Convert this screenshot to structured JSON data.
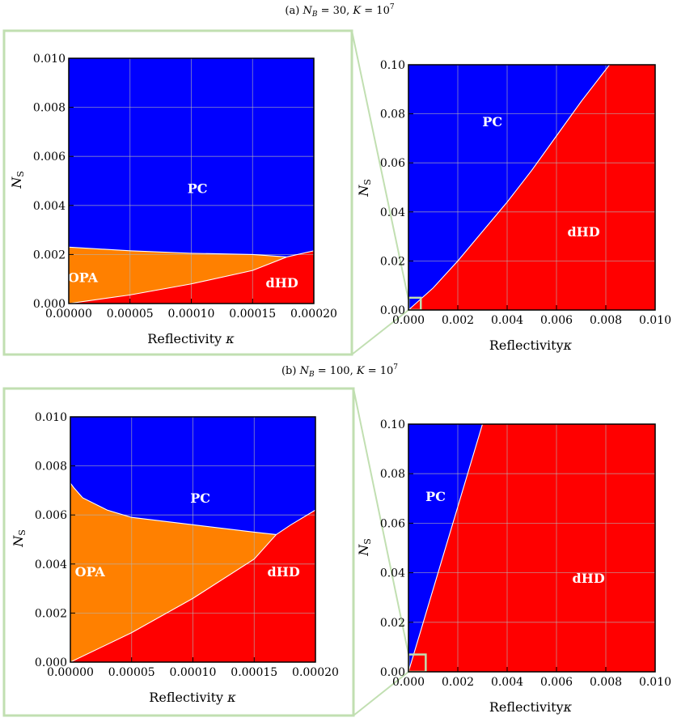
{
  "captions": {
    "a": {
      "prefix": "(a) ",
      "nb": "N",
      "nb_sub": "B",
      "nb_val": " = 30, ",
      "k": "K",
      "k_val": " = 10",
      "k_exp": "7"
    },
    "b": {
      "prefix": "(b) ",
      "nb": "N",
      "nb_sub": "B",
      "nb_val": " = 100, ",
      "k": "K",
      "k_val": " = 10",
      "k_exp": "7"
    }
  },
  "axes": {
    "xlabel": "Reflectivity",
    "xsym": "κ",
    "ylabel": "N",
    "ysub": "S"
  },
  "colors": {
    "PC": "#0000ff",
    "OPA": "#ff8000",
    "dHD": "#ff0000",
    "grid": "#b4b4b4",
    "zoom": "#c1dfb1"
  },
  "chart_data": [
    {
      "id": "a-zoom",
      "type": "area",
      "panel": "a",
      "xlim": [
        0,
        0.0002
      ],
      "ylim": [
        0,
        0.01
      ],
      "xticks": [
        "0.00000",
        "0.00005",
        "0.00010",
        "0.00015",
        "0.00020"
      ],
      "yticks": [
        "0.000",
        "0.002",
        "0.004",
        "0.006",
        "0.008",
        "0.010"
      ],
      "boundaries": {
        "opa_pc": [
          [
            0,
            0.0023
          ],
          [
            5e-05,
            0.00215
          ],
          [
            0.0001,
            0.00205
          ],
          [
            0.00015,
            0.002
          ],
          [
            0.000178,
            0.0019
          ]
        ],
        "dhd_pc": [
          [
            0.000178,
            0.0019
          ],
          [
            0.0002,
            0.00215
          ]
        ],
        "opa_dhd": [
          [
            0,
            0.0
          ],
          [
            5e-05,
            0.00035
          ],
          [
            0.0001,
            0.0008
          ],
          [
            0.00015,
            0.00135
          ],
          [
            0.000178,
            0.0019
          ]
        ]
      },
      "labels": [
        {
          "text": "PC",
          "x": 0.000105,
          "y": 0.0045
        },
        {
          "text": "OPA",
          "x": 1.15e-05,
          "y": 0.00088
        },
        {
          "text": "dHD",
          "x": 0.000174,
          "y": 0.00066
        }
      ]
    },
    {
      "id": "a-full",
      "type": "area",
      "panel": "a",
      "xlim": [
        0,
        0.01
      ],
      "ylim": [
        0,
        0.1
      ],
      "xticks": [
        "0.000",
        "0.002",
        "0.004",
        "0.006",
        "0.008",
        "0.010"
      ],
      "yticks": [
        "0.00",
        "0.02",
        "0.04",
        "0.06",
        "0.08",
        "0.10"
      ],
      "boundaries": {
        "dhd_pc": [
          [
            0,
            0.0
          ],
          [
            0.001,
            0.009
          ],
          [
            0.002,
            0.02
          ],
          [
            0.003,
            0.032
          ],
          [
            0.004,
            0.044
          ],
          [
            0.005,
            0.057
          ],
          [
            0.006,
            0.071
          ],
          [
            0.007,
            0.085
          ],
          [
            0.00815,
            0.1
          ]
        ]
      },
      "zoom_box": {
        "x": [
          0,
          0.0005
        ],
        "y": [
          0,
          0.005
        ]
      },
      "labels": [
        {
          "text": "PC",
          "x": 0.0034,
          "y": 0.075
        },
        {
          "text": "dHD",
          "x": 0.0071,
          "y": 0.03
        }
      ]
    },
    {
      "id": "b-zoom",
      "type": "area",
      "panel": "b",
      "xlim": [
        0,
        0.0002
      ],
      "ylim": [
        0,
        0.01
      ],
      "xticks": [
        "0.00000",
        "0.00005",
        "0.00010",
        "0.00015",
        "0.00020"
      ],
      "yticks": [
        "0.000",
        "0.002",
        "0.004",
        "0.006",
        "0.008",
        "0.010"
      ],
      "boundaries": {
        "opa_pc": [
          [
            0,
            0.0073
          ],
          [
            3e-06,
            0.0071
          ],
          [
            1e-05,
            0.0067
          ],
          [
            3e-05,
            0.0062
          ],
          [
            5e-05,
            0.0059
          ],
          [
            0.0001,
            0.0056
          ],
          [
            0.00015,
            0.0053
          ],
          [
            0.000168,
            0.0052
          ]
        ],
        "dhd_pc": [
          [
            0.000168,
            0.0052
          ],
          [
            0.00018,
            0.0056
          ],
          [
            0.0002,
            0.0062
          ]
        ],
        "opa_dhd": [
          [
            0,
            0.0
          ],
          [
            5e-05,
            0.0012
          ],
          [
            0.0001,
            0.0026
          ],
          [
            0.00015,
            0.0042
          ],
          [
            0.000168,
            0.0052
          ]
        ]
      },
      "labels": [
        {
          "text": "PC",
          "x": 0.000106,
          "y": 0.0065
        },
        {
          "text": "OPA",
          "x": 1.6e-05,
          "y": 0.0035
        },
        {
          "text": "dHD",
          "x": 0.000174,
          "y": 0.0035
        }
      ]
    },
    {
      "id": "b-full",
      "type": "area",
      "panel": "b",
      "xlim": [
        0,
        0.01
      ],
      "ylim": [
        0,
        0.1
      ],
      "xticks": [
        "0.000",
        "0.002",
        "0.004",
        "0.006",
        "0.008",
        "0.010"
      ],
      "yticks": [
        "0.00",
        "0.02",
        "0.04",
        "0.06",
        "0.08",
        "0.10"
      ],
      "boundaries": {
        "dhd_pc": [
          [
            0,
            0.0
          ],
          [
            0.003,
            0.1
          ]
        ]
      },
      "zoom_box": {
        "x": [
          0,
          0.0007
        ],
        "y": [
          0,
          0.007
        ]
      },
      "labels": [
        {
          "text": "PC",
          "x": 0.0011,
          "y": 0.069
        },
        {
          "text": "dHD",
          "x": 0.0073,
          "y": 0.036
        }
      ]
    }
  ]
}
